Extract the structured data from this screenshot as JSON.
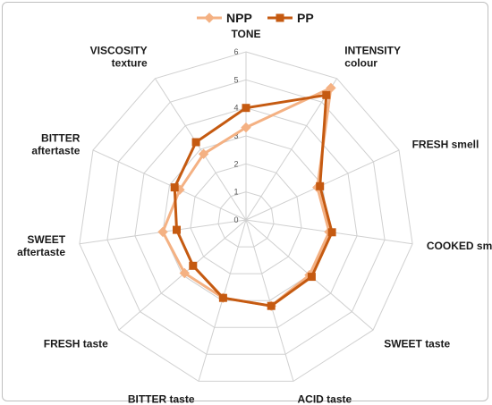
{
  "chart_data": {
    "type": "radar",
    "title": "",
    "axes": [
      [
        "TONE"
      ],
      [
        "INTENSITY",
        "colour"
      ],
      [
        "FRESH smell"
      ],
      [
        "COOKED smell"
      ],
      [
        "SWEET taste"
      ],
      [
        "ACID taste"
      ],
      [
        "BITTER taste"
      ],
      [
        "FRESH taste"
      ],
      [
        "SWEET",
        "aftertaste"
      ],
      [
        "BITTER",
        "aftertaste"
      ],
      [
        "VISCOSITY",
        "texture"
      ]
    ],
    "rlim": [
      0,
      6
    ],
    "ticks": [
      "0",
      "1",
      "2",
      "3",
      "4",
      "5",
      "6"
    ],
    "grid": true,
    "legend_position": "top",
    "series": [
      {
        "name": "NPP",
        "color": "#f4b183",
        "marker": "diamond",
        "values": [
          3.3,
          5.6,
          2.8,
          3.0,
          3.0,
          3.2,
          2.9,
          2.9,
          3.0,
          2.6,
          2.8
        ]
      },
      {
        "name": "PP",
        "color": "#c55a11",
        "marker": "square",
        "values": [
          4.0,
          5.3,
          2.9,
          3.1,
          3.1,
          3.2,
          2.9,
          2.5,
          2.5,
          2.8,
          3.3
        ]
      }
    ]
  }
}
